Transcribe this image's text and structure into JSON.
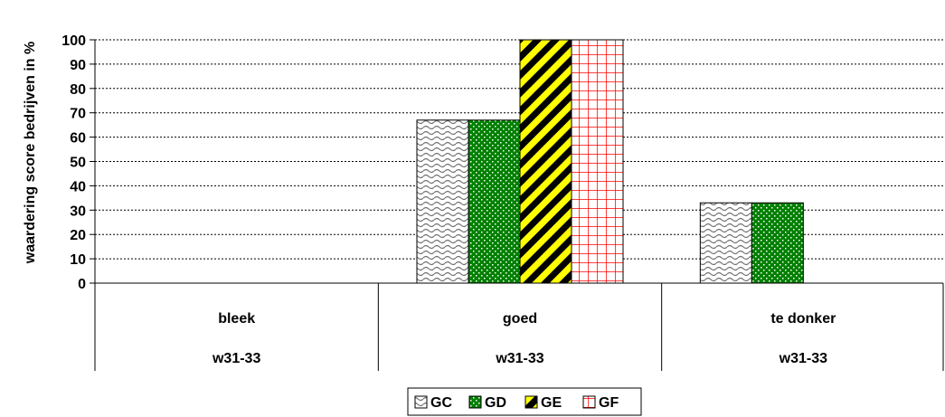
{
  "chart_data": {
    "type": "bar",
    "ylabel": "waardering score bedrijven in %",
    "ylim": [
      0,
      100
    ],
    "yticks": [
      0,
      10,
      20,
      30,
      40,
      50,
      60,
      70,
      80,
      90,
      100
    ],
    "grid": true,
    "legend_position": "bottom",
    "categories": [
      {
        "label": "bleek",
        "sublabel": "w31-33"
      },
      {
        "label": "goed",
        "sublabel": "w31-33"
      },
      {
        "label": "te donker",
        "sublabel": "w31-33"
      }
    ],
    "series": [
      {
        "name": "GC",
        "values": [
          0,
          67,
          33
        ],
        "pattern": "wave",
        "color": "#808080"
      },
      {
        "name": "GD",
        "values": [
          0,
          67,
          33
        ],
        "pattern": "dots",
        "color": "#008000"
      },
      {
        "name": "GE",
        "values": [
          0,
          100,
          0
        ],
        "pattern": "diagonal",
        "color": "#ffff00"
      },
      {
        "name": "GF",
        "values": [
          0,
          100,
          0
        ],
        "pattern": "grid",
        "color": "#ff0000"
      }
    ]
  }
}
